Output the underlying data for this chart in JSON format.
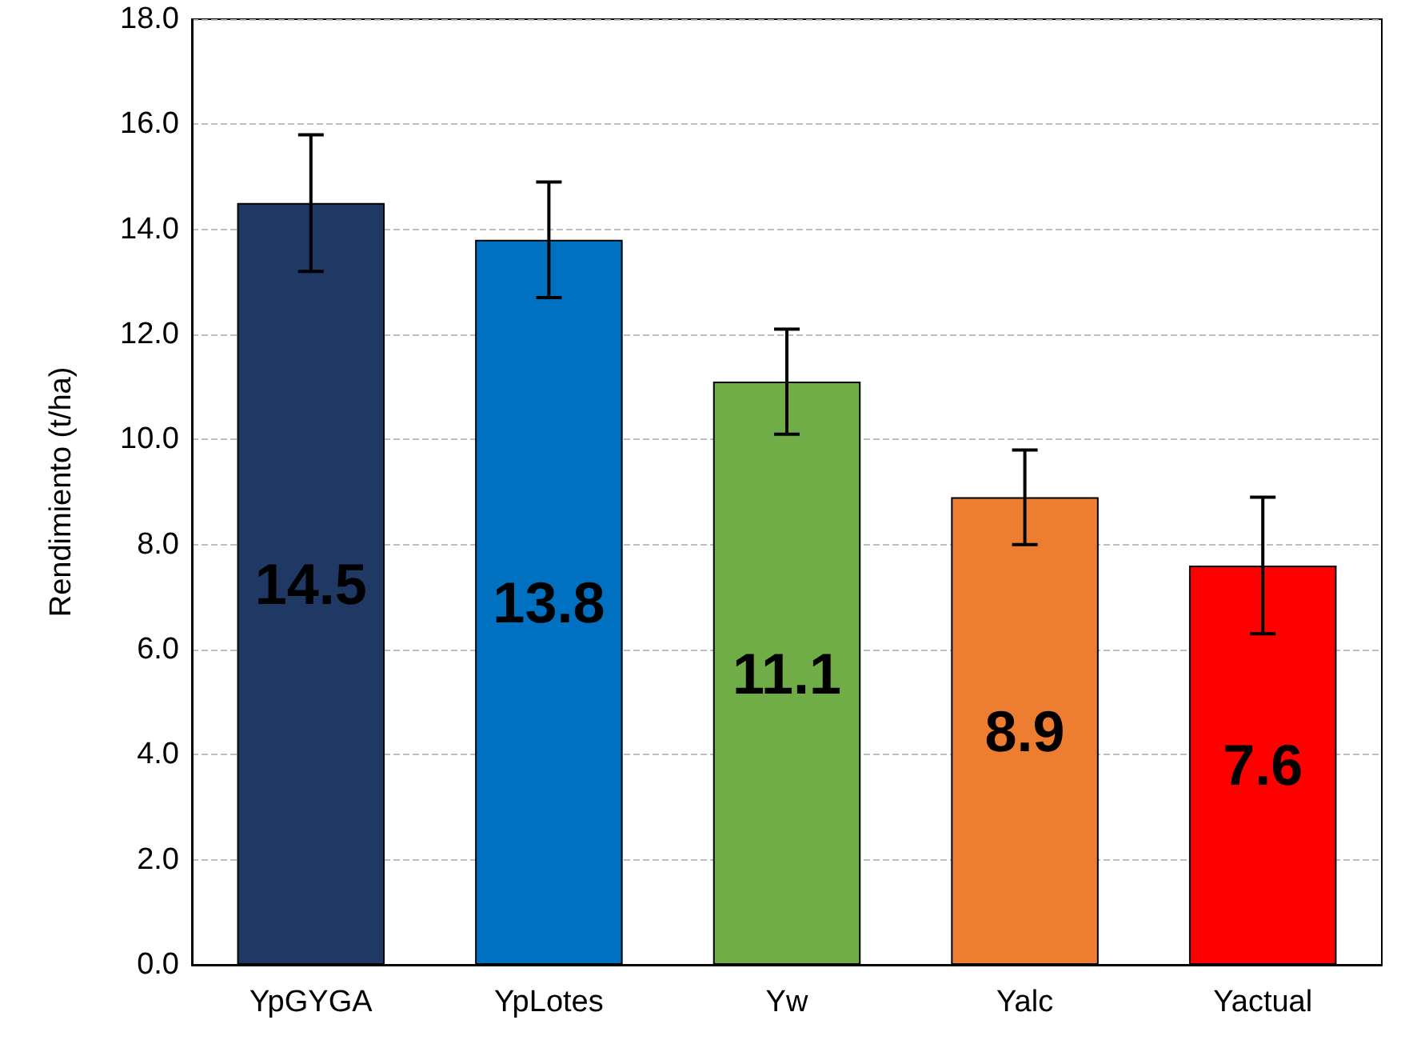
{
  "chart_data": {
    "type": "bar",
    "ylabel": "Rendimiento (t/ha)",
    "categories": [
      "YpGYGA",
      "YpLotes",
      "Yw",
      "Yalc",
      "Yactual"
    ],
    "values": [
      14.5,
      13.8,
      11.1,
      8.9,
      7.6
    ],
    "colors": [
      "#203864",
      "#0070c0",
      "#70ad47",
      "#ed7d31",
      "#ff0000"
    ],
    "errors": [
      1.3,
      1.1,
      1.0,
      0.9,
      1.3
    ],
    "ylim": [
      0,
      18
    ],
    "yticks": [
      {
        "value": 0,
        "label": "0.0"
      },
      {
        "value": 2,
        "label": "2.0"
      },
      {
        "value": 4,
        "label": "4.0"
      },
      {
        "value": 6,
        "label": "6.0"
      },
      {
        "value": 8,
        "label": "8.0"
      },
      {
        "value": 10,
        "label": "10.0"
      },
      {
        "value": 12,
        "label": "12.0"
      },
      {
        "value": 14,
        "label": "14.0"
      },
      {
        "value": 16,
        "label": "16.0"
      },
      {
        "value": 18,
        "label": "18.0"
      }
    ],
    "grid": "y",
    "data_labels": true
  }
}
